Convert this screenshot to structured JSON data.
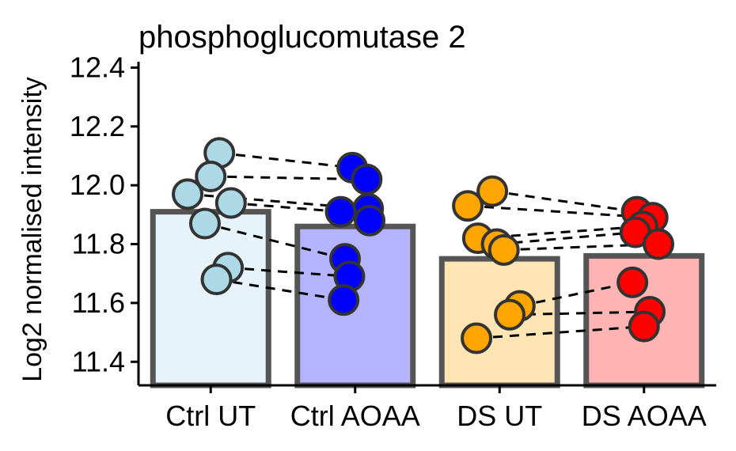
{
  "chart_data": {
    "type": "bar",
    "title": "phosphoglucomutase 2",
    "xlabel": "",
    "ylabel": "Log2 normalised intensity",
    "ylim": [
      11.32,
      12.42
    ],
    "yticks": [
      11.4,
      11.6,
      11.8,
      12.0,
      12.2,
      12.4
    ],
    "ytick_labels": [
      "11.4",
      "11.6",
      "11.8",
      "12.0",
      "12.2",
      "12.4"
    ],
    "grid": false,
    "legend": "none",
    "categories": [
      "Ctrl UT",
      "Ctrl AOAA",
      "DS UT",
      "DS AOAA"
    ],
    "bars": [
      {
        "category": "Ctrl UT",
        "value": 11.91,
        "fill": "#E7F3FA",
        "point_color": "#ADD8E6"
      },
      {
        "category": "Ctrl AOAA",
        "value": 11.86,
        "fill": "#B4B4FF",
        "point_color": "#0000FF"
      },
      {
        "category": "DS UT",
        "value": 11.75,
        "fill": "#FFE4B4",
        "point_color": "#FFA500"
      },
      {
        "category": "DS AOAA",
        "value": 11.76,
        "fill": "#FFB4B4",
        "point_color": "#FF0000"
      }
    ],
    "points": {
      "Ctrl UT": [
        {
          "value": 12.11,
          "jitter": 0.06
        },
        {
          "value": 12.03,
          "jitter": 0.0
        },
        {
          "value": 11.97,
          "jitter": -0.16
        },
        {
          "value": 11.94,
          "jitter": 0.14
        },
        {
          "value": 11.87,
          "jitter": -0.04
        },
        {
          "value": 11.72,
          "jitter": 0.12
        },
        {
          "value": 11.68,
          "jitter": 0.04
        }
      ],
      "Ctrl AOAA": [
        {
          "value": 12.06,
          "jitter": -0.02
        },
        {
          "value": 12.02,
          "jitter": 0.08
        },
        {
          "value": 11.92,
          "jitter": 0.09
        },
        {
          "value": 11.91,
          "jitter": -0.1
        },
        {
          "value": 11.88,
          "jitter": 0.1
        },
        {
          "value": 11.75,
          "jitter": -0.07
        },
        {
          "value": 11.69,
          "jitter": -0.04
        },
        {
          "value": 11.61,
          "jitter": -0.08
        }
      ],
      "DS UT": [
        {
          "value": 11.98,
          "jitter": -0.05
        },
        {
          "value": 11.93,
          "jitter": -0.22
        },
        {
          "value": 11.82,
          "jitter": -0.15
        },
        {
          "value": 11.8,
          "jitter": -0.02
        },
        {
          "value": 11.78,
          "jitter": 0.03
        },
        {
          "value": 11.59,
          "jitter": 0.14
        },
        {
          "value": 11.56,
          "jitter": 0.07
        },
        {
          "value": 11.48,
          "jitter": -0.16
        }
      ],
      "DS AOAA": [
        {
          "value": 11.91,
          "jitter": -0.05
        },
        {
          "value": 11.89,
          "jitter": 0.06
        },
        {
          "value": 11.86,
          "jitter": -0.01
        },
        {
          "value": 11.84,
          "jitter": -0.06
        },
        {
          "value": 11.8,
          "jitter": 0.1
        },
        {
          "value": 11.67,
          "jitter": -0.08
        },
        {
          "value": 11.57,
          "jitter": 0.04
        },
        {
          "value": 11.52,
          "jitter": 0.0
        }
      ]
    },
    "pairs": [
      {
        "from": [
          "Ctrl UT",
          0
        ],
        "to": [
          "Ctrl AOAA",
          0
        ]
      },
      {
        "from": [
          "Ctrl UT",
          1
        ],
        "to": [
          "Ctrl AOAA",
          1
        ]
      },
      {
        "from": [
          "Ctrl UT",
          2
        ],
        "to": [
          "Ctrl AOAA",
          2
        ]
      },
      {
        "from": [
          "Ctrl UT",
          3
        ],
        "to": [
          "Ctrl AOAA",
          3
        ]
      },
      {
        "from": [
          "Ctrl UT",
          4
        ],
        "to": [
          "Ctrl AOAA",
          5
        ]
      },
      {
        "from": [
          "Ctrl UT",
          5
        ],
        "to": [
          "Ctrl AOAA",
          6
        ]
      },
      {
        "from": [
          "Ctrl UT",
          6
        ],
        "to": [
          "Ctrl AOAA",
          7
        ]
      },
      {
        "from": [
          "DS UT",
          0
        ],
        "to": [
          "DS AOAA",
          0
        ]
      },
      {
        "from": [
          "DS UT",
          1
        ],
        "to": [
          "DS AOAA",
          1
        ]
      },
      {
        "from": [
          "DS UT",
          2
        ],
        "to": [
          "DS AOAA",
          2
        ]
      },
      {
        "from": [
          "DS UT",
          3
        ],
        "to": [
          "DS AOAA",
          3
        ]
      },
      {
        "from": [
          "DS UT",
          4
        ],
        "to": [
          "DS AOAA",
          4
        ]
      },
      {
        "from": [
          "DS UT",
          5
        ],
        "to": [
          "DS AOAA",
          5
        ]
      },
      {
        "from": [
          "DS UT",
          6
        ],
        "to": [
          "DS AOAA",
          6
        ]
      },
      {
        "from": [
          "DS UT",
          7
        ],
        "to": [
          "DS AOAA",
          7
        ]
      }
    ]
  }
}
